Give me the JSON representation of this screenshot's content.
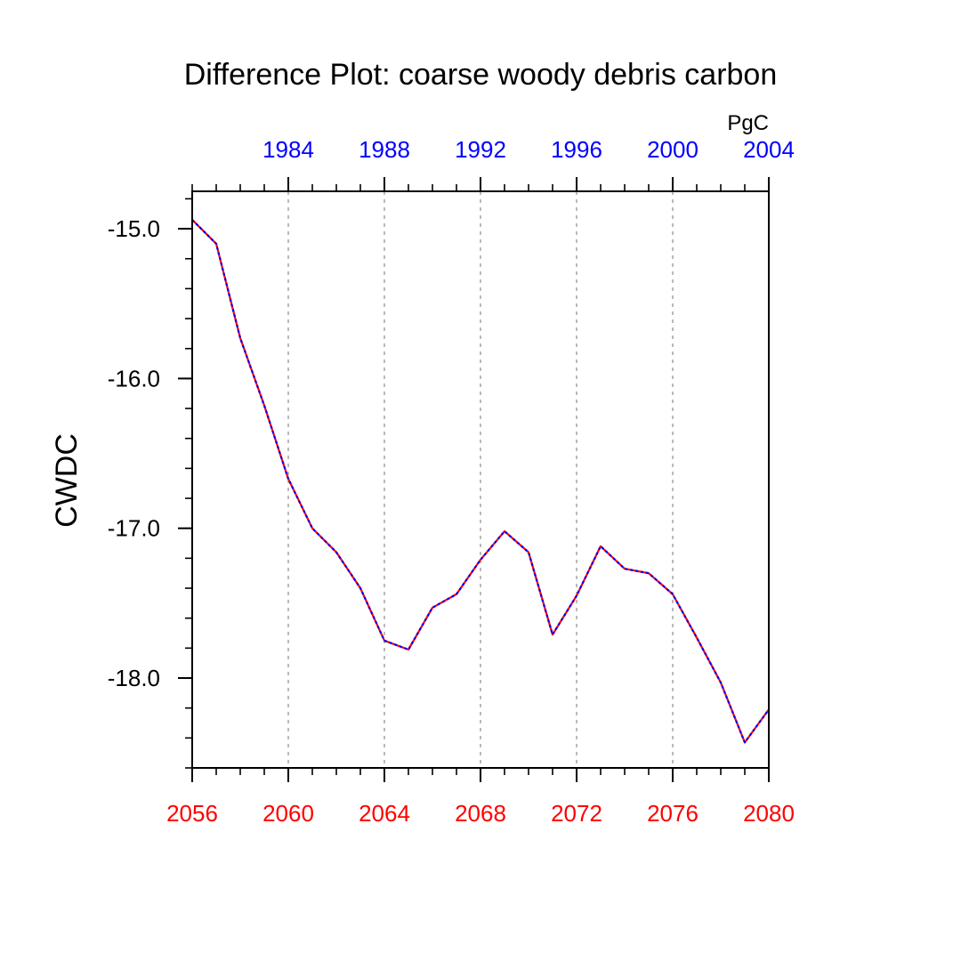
{
  "chart_data": {
    "type": "line",
    "title": "Difference Plot: coarse woody debris carbon",
    "ylabel": "CWDC",
    "units": "PgC",
    "xlabel": "",
    "bottom_axis": {
      "range": [
        2056,
        2080
      ],
      "ticks": [
        "2056",
        "2060",
        "2064",
        "2068",
        "2072",
        "2076",
        "2080"
      ],
      "color": "#ff0000"
    },
    "top_axis": {
      "range": [
        1980,
        2004
      ],
      "ticks": [
        "1984",
        "1988",
        "1992",
        "1996",
        "2000",
        "2004"
      ],
      "color": "#0000ff"
    },
    "ylim": [
      -18.6,
      -14.75
    ],
    "yticks": [
      "-15.0",
      "-16.0",
      "-17.0",
      "-18.0"
    ],
    "grid": "vertical dashed at labeled bottom ticks",
    "series": [
      {
        "name": "difference",
        "colors": [
          "#ff0000",
          "#0000ff"
        ],
        "x": [
          2056,
          2057,
          2058,
          2059,
          2060,
          2061,
          2062,
          2063,
          2064,
          2065,
          2066,
          2067,
          2068,
          2069,
          2070,
          2071,
          2072,
          2073,
          2074,
          2075,
          2076,
          2077,
          2078,
          2079,
          2080
        ],
        "values": [
          -14.94,
          -15.1,
          -15.73,
          -16.18,
          -16.67,
          -17.0,
          -17.16,
          -17.4,
          -17.75,
          -17.81,
          -17.53,
          -17.44,
          -17.21,
          -17.02,
          -17.16,
          -17.71,
          -17.45,
          -17.12,
          -17.27,
          -17.3,
          -17.44,
          -17.73,
          -18.03,
          -18.43,
          -18.21
        ]
      }
    ]
  }
}
